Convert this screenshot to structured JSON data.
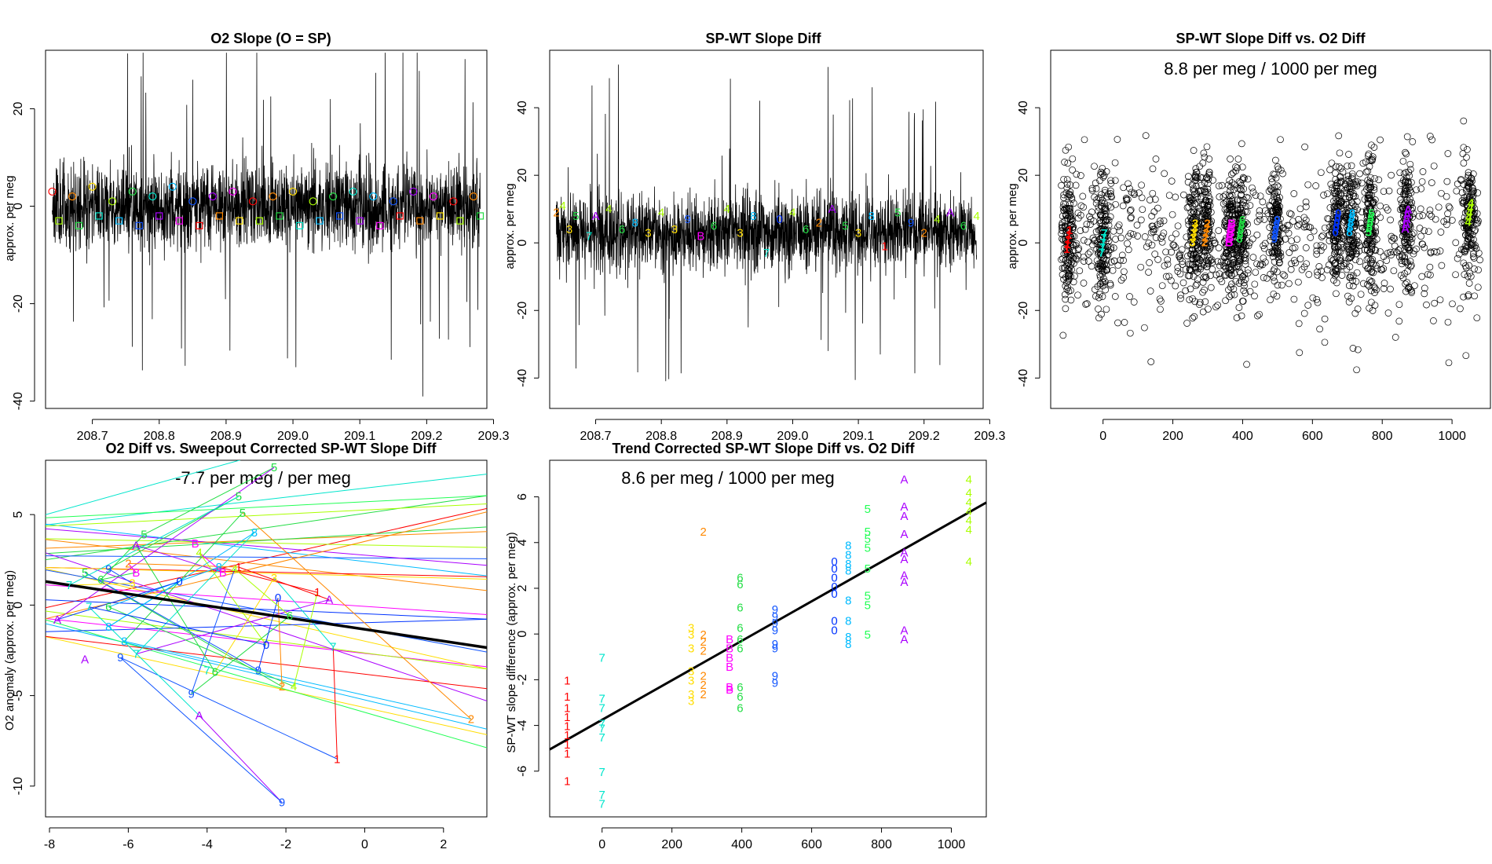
{
  "chart_data": [
    {
      "type": "line",
      "title": "O2 Slope (O = SP)",
      "xlabel": "",
      "ylabel": "approx. per meg",
      "xlim": [
        208.63,
        209.29
      ],
      "ylim": [
        -41.5,
        32
      ],
      "x_ticks": [
        "208.7",
        "208.8",
        "208.9",
        "209.0",
        "209.1",
        "209.2",
        "209.3"
      ],
      "y_ticks": [
        "20",
        "0",
        "-20",
        "-40"
      ],
      "series": [
        {
          "label": "dense noisy slope trace (black)",
          "style": "line",
          "color": "#000000",
          "x": [
            208.64,
            208.7,
            208.76,
            208.82,
            208.88,
            208.94,
            209.0,
            209.06,
            209.12,
            209.18,
            209.24,
            209.28
          ],
          "y": [
            0.3,
            -0.2,
            0.1,
            -0.4,
            0.2,
            0.0,
            -0.3,
            0.2,
            -0.1,
            0.3,
            0.0,
            -0.2
          ],
          "spread": 7.5
        },
        {
          "label": "circle markers (O = SP)",
          "style": "marker",
          "marker": "circle",
          "x": [
            208.64,
            208.67,
            208.7,
            208.73,
            208.76,
            208.79,
            208.82,
            208.85,
            208.88,
            208.91,
            208.94,
            208.97,
            209.0,
            209.03,
            209.06,
            209.09,
            209.12,
            209.15,
            209.18,
            209.21,
            209.24,
            209.27
          ],
          "y": [
            3,
            2,
            4,
            1,
            3,
            2,
            4,
            1,
            2,
            3,
            1,
            2,
            3,
            1,
            2,
            3,
            2,
            1,
            3,
            2,
            1,
            2
          ]
        },
        {
          "label": "square markers",
          "style": "marker",
          "marker": "square",
          "x": [
            208.65,
            208.68,
            208.71,
            208.74,
            208.77,
            208.8,
            208.83,
            208.86,
            208.89,
            208.92,
            208.95,
            208.98,
            209.01,
            209.04,
            209.07,
            209.1,
            209.13,
            209.16,
            209.19,
            209.22,
            209.25,
            209.28
          ],
          "y": [
            -3,
            -4,
            -2,
            -3,
            -4,
            -2,
            -3,
            -4,
            -2,
            -3,
            -3,
            -2,
            -4,
            -3,
            -2,
            -3,
            -4,
            -2,
            -3,
            -2,
            -3,
            -2
          ]
        }
      ],
      "grid": false,
      "legend": "none"
    },
    {
      "type": "line",
      "title": "SP-WT Slope Diff",
      "xlabel": "",
      "ylabel": "approx. per meg",
      "xlim": [
        208.63,
        209.29
      ],
      "ylim": [
        -49,
        57
      ],
      "x_ticks": [
        "208.7",
        "208.8",
        "208.9",
        "209.0",
        "209.1",
        "209.2",
        "209.3"
      ],
      "y_ticks": [
        "40",
        "20",
        "0",
        "-20",
        "-40"
      ],
      "series": [
        {
          "label": "dense noisy slope difference trace (black)",
          "style": "line",
          "color": "#000000",
          "x": [
            208.64,
            208.7,
            208.76,
            208.82,
            208.88,
            208.94,
            209.0,
            209.06,
            209.12,
            209.18,
            209.24,
            209.28
          ],
          "y": [
            3.5,
            3.0,
            3.2,
            2.8,
            3.1,
            3.3,
            2.9,
            3.4,
            3.0,
            3.2,
            3.1,
            2.9
          ],
          "spread": 10
        },
        {
          "label": "cycle digit markers",
          "style": "text",
          "x": [
            208.64,
            208.65,
            208.66,
            208.67,
            208.69,
            208.7,
            208.72,
            208.74,
            208.76,
            208.78,
            208.8,
            208.82,
            208.84,
            208.86,
            208.88,
            208.9,
            208.92,
            208.94,
            208.96,
            208.98,
            209.0,
            209.02,
            209.04,
            209.06,
            209.08,
            209.1,
            209.12,
            209.14,
            209.16,
            209.18,
            209.2,
            209.22,
            209.24,
            209.26,
            209.28
          ],
          "y": [
            9,
            11,
            4,
            8,
            2,
            8,
            10,
            4,
            6,
            3,
            9,
            4,
            7,
            2,
            5,
            10,
            3,
            8,
            -3,
            7,
            9,
            4,
            6,
            10,
            5,
            3,
            8,
            -1,
            9,
            6,
            3,
            7,
            9,
            5,
            8
          ],
          "labels": [
            "2",
            "4",
            "3",
            "5",
            "7",
            "A",
            "4",
            "6",
            "8",
            "3",
            "4",
            "3",
            "9",
            "B",
            "6",
            "4",
            "3",
            "8",
            "7",
            "0",
            "4",
            "6",
            "2",
            "A",
            "5",
            "3",
            "8",
            "1",
            "5",
            "9",
            "2",
            "4",
            "A",
            "6",
            "4"
          ]
        }
      ],
      "grid": false,
      "legend": "none"
    },
    {
      "type": "scatter",
      "title": "SP-WT Slope Diff vs. O2 Diff",
      "annotation": "8.8 per meg / 1000 per meg",
      "xlabel": "",
      "ylabel": "approx. per meg",
      "xlim": [
        -150,
        1110
      ],
      "ylim": [
        -49,
        57
      ],
      "x_ticks": [
        "0",
        "200",
        "400",
        "600",
        "800",
        "1000"
      ],
      "y_ticks": [
        "40",
        "20",
        "0",
        "-20",
        "-40"
      ],
      "clusters": [
        {
          "label": "1",
          "color": "#ff0000",
          "x": -100,
          "center_y": 1
        },
        {
          "label": "7",
          "color": "#00e5cc",
          "x": 0,
          "center_y": 0
        },
        {
          "label": "3",
          "color": "#ffdd00",
          "x": 260,
          "center_y": 3
        },
        {
          "label": "2",
          "color": "#ff8800",
          "x": 295,
          "center_y": 3
        },
        {
          "label": "B",
          "color": "#ff00ff",
          "x": 365,
          "center_y": 3
        },
        {
          "label": "6",
          "color": "#22dd44",
          "x": 395,
          "center_y": 4
        },
        {
          "label": "9",
          "color": "#1155ff",
          "x": 495,
          "center_y": 4
        },
        {
          "label": "0",
          "color": "#0033ff",
          "x": 670,
          "center_y": 6
        },
        {
          "label": "8",
          "color": "#00bbff",
          "x": 710,
          "center_y": 6
        },
        {
          "label": "5",
          "color": "#22ff55",
          "x": 765,
          "center_y": 6
        },
        {
          "label": "A",
          "color": "#aa00ff",
          "x": 870,
          "center_y": 7
        },
        {
          "label": "4",
          "color": "#aaff00",
          "x": 1050,
          "center_y": 9
        }
      ],
      "grid": false,
      "legend": "none"
    },
    {
      "type": "line",
      "title": "O2 Diff vs. Sweepout Corrected SP-WT Slope Diff",
      "annotation": "-7.7 per meg / per meg",
      "xlabel": "",
      "ylabel": "O2 anomaly (approx. per meg)",
      "xlim": [
        -8.1,
        3.1
      ],
      "ylim": [
        -11.7,
        8.0
      ],
      "x_ticks": [
        "-8",
        "-6",
        "-4",
        "-2",
        "0",
        "2"
      ],
      "y_ticks": [
        "5",
        "0",
        "-5",
        "-10"
      ],
      "fit_line": {
        "x": [
          -8.1,
          3.1
        ],
        "y": [
          1.3,
          -2.35
        ]
      },
      "labelled_points": [
        {
          "label": "5",
          "x": -2.3,
          "y": 7.6
        },
        {
          "label": "5",
          "x": -3.2,
          "y": 6.0
        },
        {
          "label": "5",
          "x": -3.1,
          "y": 5.1
        },
        {
          "label": "5",
          "x": -5.6,
          "y": 3.9
        },
        {
          "label": "5",
          "x": -7.1,
          "y": 1.8
        },
        {
          "label": "A",
          "x": -5.8,
          "y": 3.3
        },
        {
          "label": "A",
          "x": -7.8,
          "y": -0.8
        },
        {
          "label": "A",
          "x": -7.1,
          "y": -3.0
        },
        {
          "label": "A",
          "x": -4.2,
          "y": -6.1
        },
        {
          "label": "A",
          "x": -0.9,
          "y": 0.3
        },
        {
          "label": "9",
          "x": -6.5,
          "y": 2.0
        },
        {
          "label": "9",
          "x": -6.2,
          "y": -2.9
        },
        {
          "label": "9",
          "x": -4.4,
          "y": -4.9
        },
        {
          "label": "9",
          "x": -2.7,
          "y": -3.6
        },
        {
          "label": "9",
          "x": -2.1,
          "y": -10.9
        },
        {
          "label": "8",
          "x": -2.8,
          "y": 4.0
        },
        {
          "label": "8",
          "x": -3.7,
          "y": 2.1
        },
        {
          "label": "8",
          "x": -6.1,
          "y": -2.0
        },
        {
          "label": "8",
          "x": -6.5,
          "y": -1.2
        },
        {
          "label": "7",
          "x": -7.5,
          "y": 1.1
        },
        {
          "label": "7",
          "x": -7.0,
          "y": -0.1
        },
        {
          "label": "7",
          "x": -5.8,
          "y": -2.7
        },
        {
          "label": "7",
          "x": -4.0,
          "y": -3.6
        },
        {
          "label": "7",
          "x": -0.8,
          "y": -2.3
        },
        {
          "label": "6",
          "x": -6.7,
          "y": 1.4
        },
        {
          "label": "6",
          "x": -6.5,
          "y": -0.1
        },
        {
          "label": "6",
          "x": -3.8,
          "y": -3.7
        },
        {
          "label": "6",
          "x": -1.9,
          "y": -0.6
        },
        {
          "label": "3",
          "x": -5.9,
          "y": 1.2
        },
        {
          "label": "3",
          "x": -2.3,
          "y": 1.5
        },
        {
          "label": "2",
          "x": -6.0,
          "y": 2.3
        },
        {
          "label": "2",
          "x": -2.1,
          "y": -4.5
        },
        {
          "label": "2",
          "x": 2.7,
          "y": -6.3
        },
        {
          "label": "1",
          "x": -3.2,
          "y": 2.1
        },
        {
          "label": "1",
          "x": -1.2,
          "y": 0.7
        },
        {
          "label": "1",
          "x": -0.7,
          "y": -8.5
        },
        {
          "label": "B",
          "x": -5.8,
          "y": 1.8
        },
        {
          "label": "B",
          "x": -4.3,
          "y": 3.4
        },
        {
          "label": "B",
          "x": -3.6,
          "y": 1.8
        },
        {
          "label": "0",
          "x": -4.7,
          "y": 1.3
        },
        {
          "label": "0",
          "x": -2.2,
          "y": 0.4
        },
        {
          "label": "0",
          "x": -2.5,
          "y": -2.2
        },
        {
          "label": "4",
          "x": -3.3,
          "y": 2.0
        },
        {
          "label": "4",
          "x": -1.8,
          "y": -4.5
        },
        {
          "label": "4",
          "x": -4.2,
          "y": 2.9
        }
      ],
      "grid": false,
      "legend": "none"
    },
    {
      "type": "scatter",
      "title": "Trend Corrected SP-WT Slope Diff vs. O2 Diff",
      "annotation": "8.6 per meg / 1000 per meg",
      "xlabel": "",
      "ylabel": "SP-WT slope difference (approx. per meg)",
      "xlim": [
        -150,
        1100
      ],
      "ylim": [
        -8,
        7.6
      ],
      "x_ticks": [
        "0",
        "200",
        "400",
        "600",
        "800",
        "1000"
      ],
      "y_ticks": [
        "6",
        "4",
        "2",
        "0",
        "-2",
        "-4",
        "-6"
      ],
      "fit_line": {
        "x": [
          -150,
          1100
        ],
        "y": [
          -5.05,
          5.75
        ]
      },
      "groups": [
        {
          "label": "1",
          "color": "#ff0000",
          "x": -100,
          "y": [
            -2.0,
            -2.7,
            -3.2,
            -3.6,
            -4.0,
            -4.4,
            -4.8,
            -5.2,
            -6.4
          ]
        },
        {
          "label": "7",
          "color": "#00e5cc",
          "x": 0,
          "y": [
            -1.0,
            -2.8,
            -3.2,
            -3.9,
            -4.1,
            -4.5,
            -6.0,
            -7.0,
            -7.4
          ]
        },
        {
          "label": "3",
          "color": "#ffdd00",
          "x": 255,
          "y": [
            0.3,
            0.0,
            -0.6,
            -1.6,
            -2.0,
            -2.6,
            -2.9
          ]
        },
        {
          "label": "2",
          "color": "#ff8800",
          "x": 290,
          "y": [
            4.5,
            0.0,
            -0.3,
            -0.7,
            -1.8,
            -2.2,
            -2.6
          ]
        },
        {
          "label": "B",
          "color": "#ff00ff",
          "x": 365,
          "y": [
            -0.2,
            -0.6,
            -1.0,
            -1.4,
            -2.3,
            -2.4
          ]
        },
        {
          "label": "6",
          "color": "#22dd44",
          "x": 395,
          "y": [
            2.5,
            2.2,
            1.2,
            0.3,
            -0.2,
            -0.6,
            -2.3,
            -2.7,
            -3.2
          ]
        },
        {
          "label": "9",
          "color": "#1155ff",
          "x": 495,
          "y": [
            1.1,
            0.8,
            0.5,
            0.2,
            -0.4,
            -0.6,
            -1.8,
            -2.1
          ]
        },
        {
          "label": "0",
          "color": "#0033ff",
          "x": 665,
          "y": [
            3.2,
            2.9,
            2.5,
            2.1,
            1.8,
            0.6,
            0.2
          ]
        },
        {
          "label": "8",
          "color": "#00bbff",
          "x": 705,
          "y": [
            3.9,
            3.5,
            3.1,
            2.8,
            1.5,
            0.6,
            -0.1,
            -0.4
          ]
        },
        {
          "label": "5",
          "color": "#22ff55",
          "x": 760,
          "y": [
            5.5,
            4.5,
            4.2,
            3.8,
            2.9,
            1.7,
            1.3,
            0.0
          ]
        },
        {
          "label": "A",
          "color": "#aa00ff",
          "x": 865,
          "y": [
            6.8,
            5.6,
            5.2,
            4.4,
            3.6,
            3.3,
            2.6,
            2.3,
            0.2,
            -0.2
          ]
        },
        {
          "label": "4",
          "color": "#aaff00",
          "x": 1050,
          "y": [
            6.8,
            6.2,
            5.8,
            5.4,
            5.0,
            4.6,
            3.2
          ]
        }
      ],
      "grid": false,
      "legend": "none"
    }
  ]
}
